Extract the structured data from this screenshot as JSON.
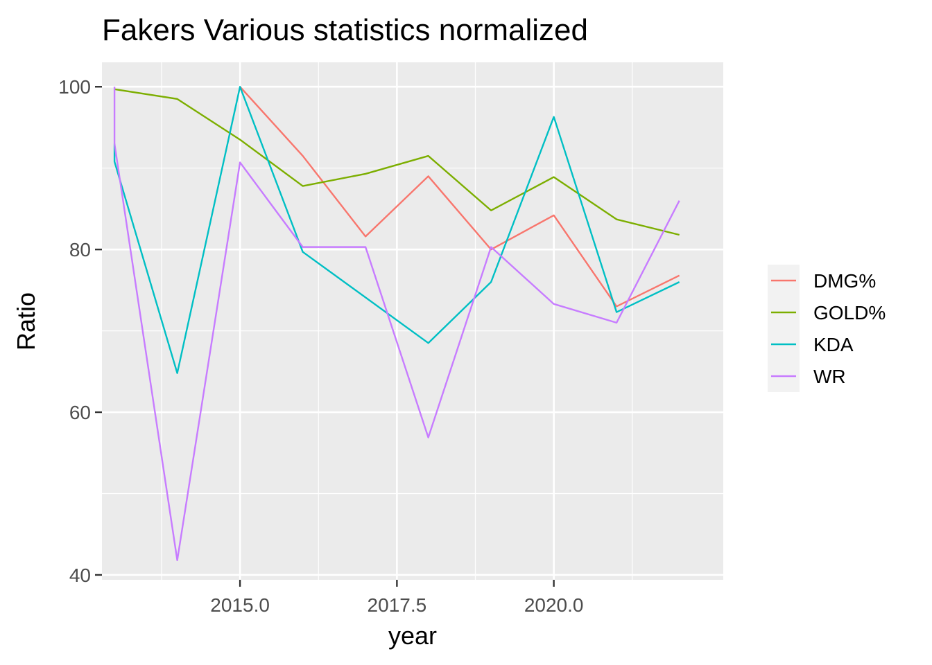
{
  "chart_data": {
    "type": "line",
    "title": "Fakers Various statistics normalized",
    "xlabel": "year",
    "ylabel": "Ratio",
    "xlim": [
      2012.8,
      2022.7
    ],
    "ylim": [
      39.4,
      103.0
    ],
    "x_ticks": [
      2015.0,
      2017.5,
      2020.0
    ],
    "x_tick_labels": [
      "2015.0",
      "2017.5",
      "2020.0"
    ],
    "x_minor_ticks": [
      2013.75,
      2016.25,
      2018.75,
      2021.25
    ],
    "y_ticks": [
      40,
      60,
      80,
      100
    ],
    "y_tick_labels": [
      "40",
      "60",
      "80",
      "100"
    ],
    "y_minor_ticks": [
      50,
      70,
      90
    ],
    "grid": true,
    "legend_position": "right",
    "panel_color": "#EBEBEB",
    "series": [
      {
        "name": "DMG%",
        "color": "#F8766D",
        "points": [
          [
            2015,
            100.0
          ],
          [
            2016,
            91.5
          ],
          [
            2017,
            81.6
          ],
          [
            2018,
            89.0
          ],
          [
            2019,
            80.0
          ],
          [
            2020,
            84.2
          ],
          [
            2021,
            73.0
          ],
          [
            2022,
            76.8
          ]
        ]
      },
      {
        "name": "GOLD%",
        "color": "#7CAE00",
        "points": [
          [
            2013,
            99.7
          ],
          [
            2014,
            98.5
          ],
          [
            2015,
            93.5
          ],
          [
            2016,
            87.8
          ],
          [
            2017,
            89.3
          ],
          [
            2018,
            91.5
          ],
          [
            2019,
            84.8
          ],
          [
            2020,
            88.9
          ],
          [
            2021,
            83.7
          ],
          [
            2022,
            81.8
          ]
        ]
      },
      {
        "name": "KDA",
        "color": "#00BFC4",
        "points": [
          [
            2013,
            93.0
          ],
          [
            2013,
            90.8
          ],
          [
            2014,
            64.8
          ],
          [
            2015,
            100.0
          ],
          [
            2016,
            79.7
          ],
          [
            2018,
            68.5
          ],
          [
            2019,
            76.0
          ],
          [
            2020,
            96.3
          ],
          [
            2021,
            72.3
          ],
          [
            2022,
            76.0
          ]
        ]
      },
      {
        "name": "WR",
        "color": "#C77CFF",
        "points": [
          [
            2013,
            100.0
          ],
          [
            2013,
            93.0
          ],
          [
            2014,
            41.8
          ],
          [
            2015,
            90.7
          ],
          [
            2016,
            80.3
          ],
          [
            2017,
            80.3
          ],
          [
            2018,
            56.9
          ],
          [
            2019,
            80.3
          ],
          [
            2020,
            73.3
          ],
          [
            2021,
            71.0
          ],
          [
            2022,
            86.0
          ]
        ]
      }
    ]
  }
}
